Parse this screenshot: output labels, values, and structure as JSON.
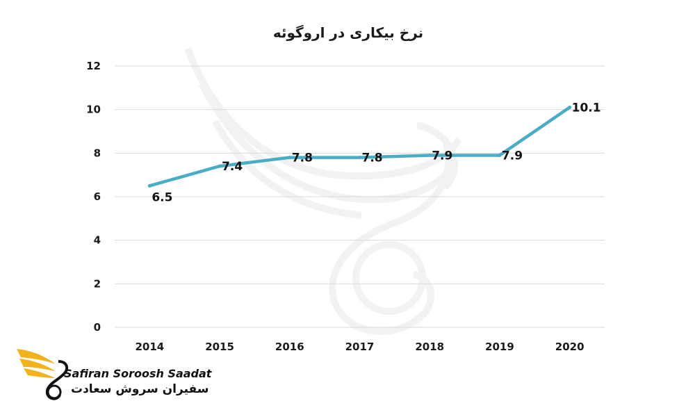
{
  "chart_data": {
    "type": "line",
    "title": "نرخ بیکاری در اروگوئه",
    "categories": [
      "2014",
      "2015",
      "2016",
      "2017",
      "2018",
      "2019",
      "2020"
    ],
    "series": [
      {
        "values": [
          6.5,
          7.4,
          7.8,
          7.8,
          7.9,
          7.9,
          10.1
        ],
        "color": "#4BACC6"
      }
    ],
    "data_labels": [
      "6.5",
      "7.4",
      "7.8",
      "7.8",
      "7.9",
      "7.9",
      "10.1"
    ],
    "yticks": [
      "0",
      "2",
      "4",
      "6",
      "8",
      "10",
      "12"
    ],
    "ylim": [
      0,
      12
    ],
    "xlabel": "",
    "ylabel": "",
    "grid": true,
    "legend": "none"
  },
  "watermark": {
    "icon": "swan-wing-watermark-icon"
  },
  "logo": {
    "icon": "golden-wing-logo-icon",
    "text_en": "Safiran Soroosh Saadat",
    "text_fa": "سفیران سروش سعادت",
    "accent_color": "#F2B21B"
  }
}
